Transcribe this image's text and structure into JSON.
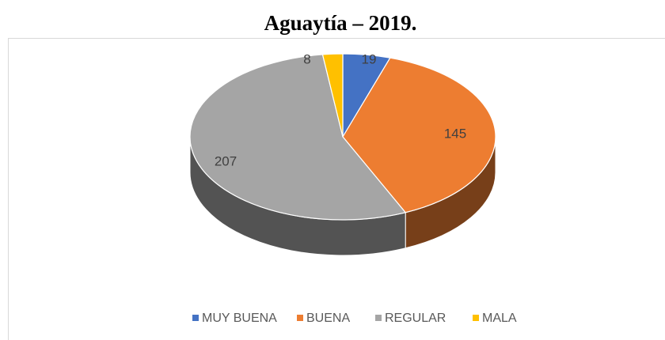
{
  "chart_data": {
    "type": "pie",
    "title": "Aguaytía – 2019.",
    "categories": [
      "MUY BUENA",
      "BUENA",
      "REGULAR",
      "MALA"
    ],
    "values": [
      19,
      145,
      207,
      8
    ],
    "colors": [
      "#4472c4",
      "#ed7d31",
      "#a5a5a5",
      "#ffc000"
    ]
  }
}
